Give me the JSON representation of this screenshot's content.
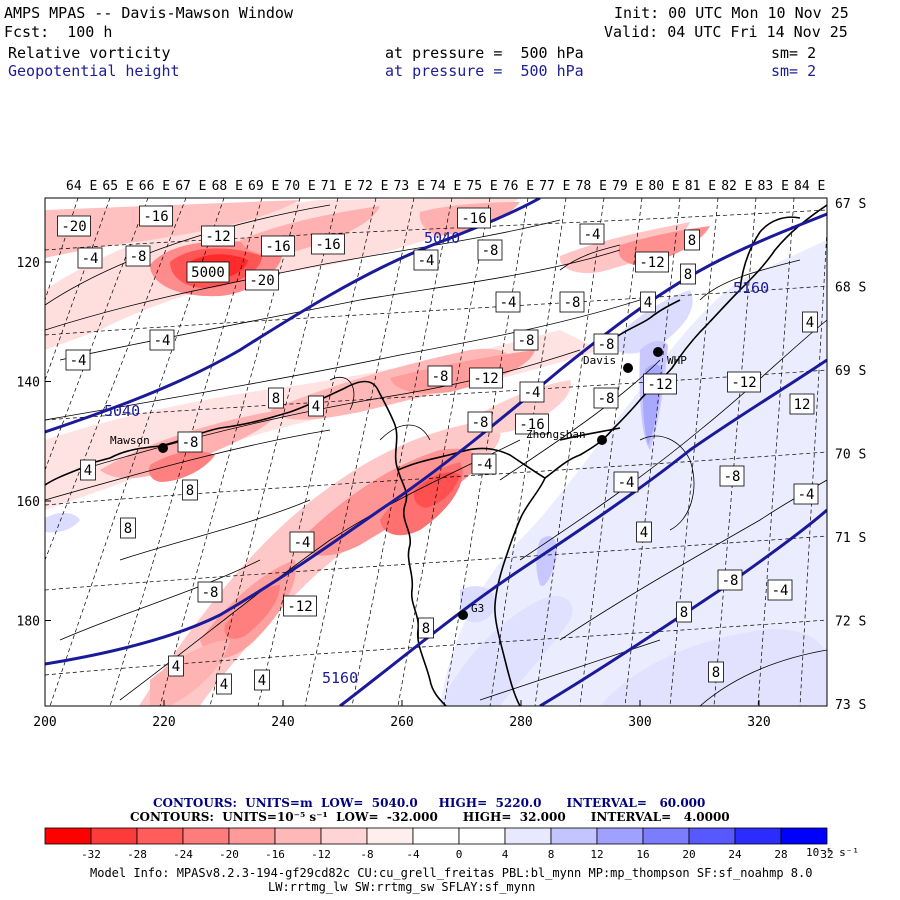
{
  "header": {
    "title": "AMPS MPAS -- Davis-Mawson Window",
    "forecast": "Fcst:  100 h",
    "init": "Init: 00 UTC Mon 10 Nov 25",
    "valid": "Valid: 04 UTC Fri 14 Nov 25",
    "field1": {
      "name": "Relative vorticity",
      "level": "at pressure =  500 hPa",
      "smooth": "sm= 2"
    },
    "field2": {
      "name": "Geopotential height",
      "level": "at pressure =  500 hPa",
      "smooth": "sm= 2"
    }
  },
  "map": {
    "top_lon_labels": [
      "64 E",
      "65 E",
      "66 E",
      "67 E",
      "68 E",
      "69 E",
      "70 E",
      "71 E",
      "72 E",
      "73 E",
      "74 E",
      "75 E",
      "76 E",
      "77 E",
      "78 E",
      "79 E",
      "80 E",
      "81 E",
      "82 E",
      "83 E",
      "84 E"
    ],
    "right_lat_labels": [
      "67 S",
      "68 S",
      "69 S",
      "70 S",
      "71 S",
      "72 S",
      "73 S"
    ],
    "x_ticks": [
      "200",
      "220",
      "240",
      "260",
      "280",
      "300",
      "320"
    ],
    "y_ticks": [
      "120",
      "140",
      "160",
      "180"
    ],
    "stations": [
      {
        "name": "Mawson"
      },
      {
        "name": "Davis"
      },
      {
        "name": "WHP"
      },
      {
        "name": "Zhongshan"
      },
      {
        "name": "G3"
      }
    ],
    "height_labels": [
      "5040",
      "5040",
      "5160",
      "5160"
    ],
    "vort_labels": [
      "-20",
      "-16",
      "-8",
      "-4",
      "-12",
      "-16",
      "-16",
      "5000",
      "-20",
      "-16",
      "-8",
      "-4",
      "-4",
      "-8",
      "-12",
      "8",
      "8",
      "-4",
      "-4",
      "4",
      "4",
      "-4",
      "-8",
      "-8",
      "-12",
      "-4",
      "-8",
      "-12",
      "-8",
      "-12",
      "12",
      "8",
      "4",
      "-8",
      "-16",
      "-4",
      "-8",
      "4",
      "8",
      "-4",
      "8",
      "-8",
      "-4",
      "-4",
      "4",
      "-8",
      "-8",
      "-12",
      "-4",
      "8",
      "8",
      "4",
      "4",
      "4",
      "8",
      "8",
      "8",
      "4",
      "4",
      "8"
    ]
  },
  "legend": {
    "caption1": "CONTOURS:  UNITS=m  LOW=  5040.0     HIGH=  5220.0      INTERVAL=   60.000",
    "caption2": "CONTOURS:  UNITS=10⁻⁵ s⁻¹  LOW=  -32.000      HIGH=  32.000      INTERVAL=   4.0000",
    "labels": [
      "-32",
      "-28",
      "-24",
      "-20",
      "-16",
      "-12",
      "-8",
      "-4",
      "0",
      "4",
      "8",
      "12",
      "16",
      "20",
      "24",
      "28",
      "32"
    ],
    "unit": "10⁻⁵ s⁻¹",
    "colors": [
      "#ff0000",
      "#ff3a3a",
      "#ff5c5c",
      "#ff7c7c",
      "#ff9a9a",
      "#ffb8b8",
      "#ffd4d4",
      "#ffeeee",
      "#ffffff",
      "#ffffff",
      "#e8e8ff",
      "#c4c4ff",
      "#a0a0ff",
      "#7c7cff",
      "#5858ff",
      "#2c2cff",
      "#0000ff"
    ]
  },
  "model_info": {
    "line1": "Model Info: MPASv8.2.3-194-gf29cd82c CU:cu_grell_freitas PBL:bl_mynn MP:mp_thompson SF:sf_noahmp 8.0",
    "line2": "LW:rrtmg_lw SW:rrtmg_sw SFLAY:sf_mynn"
  }
}
